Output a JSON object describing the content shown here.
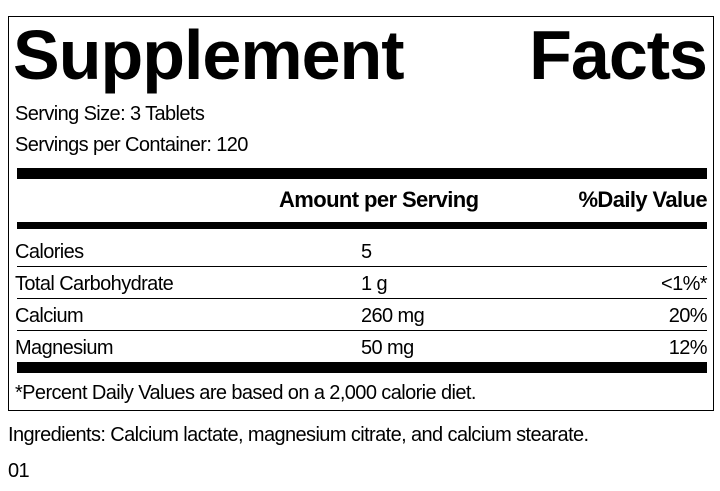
{
  "title": {
    "word1": "Supplement",
    "word2": "Facts"
  },
  "serving_size": "Serving Size: 3 Tablets",
  "servings_per_container": "Servings per Container: 120",
  "headers": {
    "amount": "Amount per Serving",
    "daily_value": "%Daily Value"
  },
  "rows": [
    {
      "name": "Calories",
      "amount": "5",
      "dv": ""
    },
    {
      "name": "Total Carbohydrate",
      "amount": "1 g",
      "dv": "<1%*"
    },
    {
      "name": "Calcium",
      "amount": "260 mg",
      "dv": "20%"
    },
    {
      "name": "Magnesium",
      "amount": "50 mg",
      "dv": "12%"
    }
  ],
  "footnote": "*Percent Daily Values are based on a 2,000 calorie diet.",
  "ingredients": "Ingredients: Calcium lactate, magnesium citrate, and calcium stearate.",
  "code": "01"
}
